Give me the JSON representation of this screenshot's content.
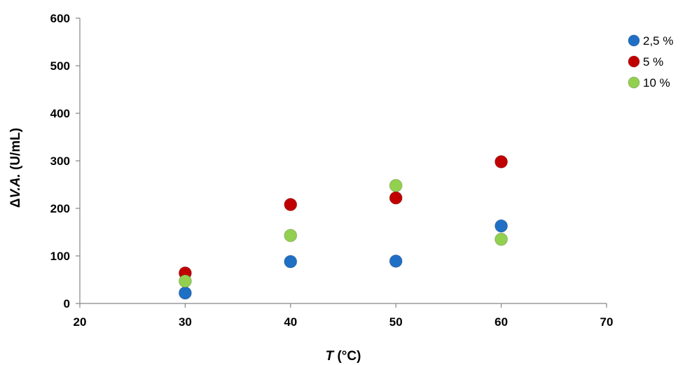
{
  "chart_data": {
    "type": "scatter",
    "title": "",
    "xlabel": {
      "italic": "T",
      "rest": " (°C)"
    },
    "ylabel": {
      "prefix": "Δ",
      "italic": "V.A.",
      "rest": " (U/mL)"
    },
    "xlim": [
      20,
      70
    ],
    "ylim": [
      0,
      600
    ],
    "xticks": [
      20,
      30,
      40,
      50,
      60,
      70
    ],
    "yticks": [
      0,
      100,
      200,
      300,
      400,
      500,
      600
    ],
    "grid": false,
    "legend_position": "top-right",
    "series": [
      {
        "name": "2,5 %",
        "color": "#1f6fc5",
        "x": [
          30,
          40,
          50,
          60
        ],
        "y": [
          22,
          88,
          89,
          163
        ]
      },
      {
        "name": "5 %",
        "color": "#c00000",
        "x": [
          30,
          40,
          50,
          60
        ],
        "y": [
          64,
          208,
          222,
          298
        ]
      },
      {
        "name": "10 %",
        "color": "#92d050",
        "x": [
          30,
          40,
          50,
          60
        ],
        "y": [
          47,
          143,
          248,
          135
        ]
      }
    ]
  }
}
